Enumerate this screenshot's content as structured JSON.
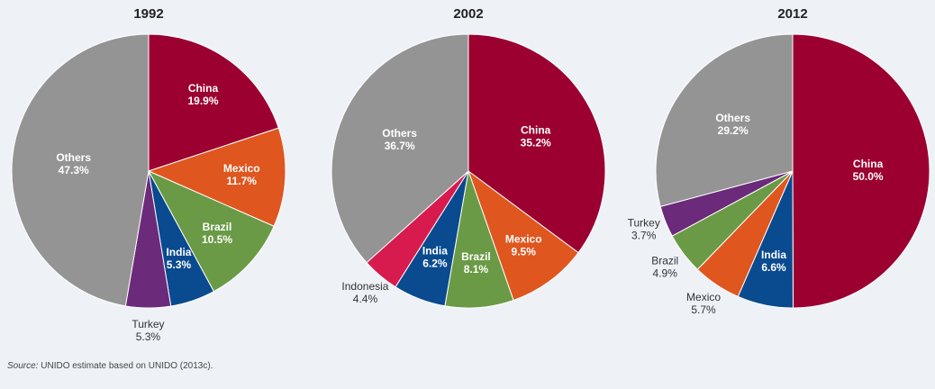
{
  "chart_data": [
    {
      "type": "pie",
      "title": "1992",
      "categories": [
        "China",
        "Mexico",
        "Brazil",
        "India",
        "Turkey",
        "Others"
      ],
      "values": [
        19.9,
        11.7,
        10.5,
        5.3,
        5.3,
        47.3
      ],
      "value_labels": [
        "19.9%",
        "11.7%",
        "10.5%",
        "5.3%",
        "5.3%",
        "47.3%"
      ],
      "colors": [
        "#9b0030",
        "#e0561f",
        "#6a9a45",
        "#0a4a8f",
        "#6b2a7a",
        "#949494"
      ]
    },
    {
      "type": "pie",
      "title": "2002",
      "categories": [
        "China",
        "Mexico",
        "Brazil",
        "India",
        "Indonesia",
        "Others"
      ],
      "values": [
        35.2,
        9.5,
        8.1,
        6.2,
        4.4,
        36.7
      ],
      "value_labels": [
        "35.2%",
        "9.5%",
        "8.1%",
        "6.2%",
        "4.4%",
        "36.7%"
      ],
      "colors": [
        "#9b0030",
        "#e0561f",
        "#6a9a45",
        "#0a4a8f",
        "#d81b4f",
        "#949494"
      ]
    },
    {
      "type": "pie",
      "title": "2012",
      "categories": [
        "China",
        "India",
        "Mexico",
        "Brazil",
        "Turkey",
        "Others"
      ],
      "values": [
        50.0,
        6.6,
        5.7,
        4.9,
        3.7,
        29.2
      ],
      "value_labels": [
        "50.0%",
        "6.6%",
        "5.7%",
        "4.9%",
        "3.7%",
        "29.2%"
      ],
      "colors": [
        "#9b0030",
        "#0a4a8f",
        "#e0561f",
        "#6a9a45",
        "#6b2a7a",
        "#949494"
      ]
    }
  ],
  "source_label": "Source:",
  "source": "UNIDO estimate based on UNIDO (2013c)."
}
